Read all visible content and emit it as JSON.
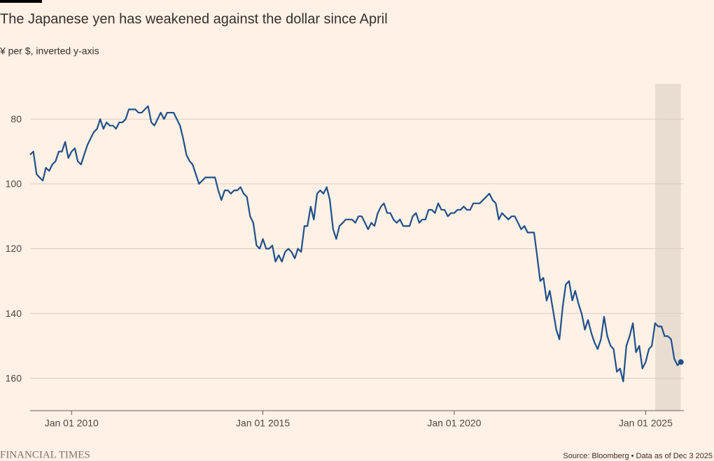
{
  "chart_data": {
    "type": "line",
    "title": "The Japanese yen has weakened against the dollar since April",
    "subtitle": "¥ per $, inverted y-axis",
    "source": "Source: Bloomberg • Data as of Dec 3 2025",
    "brand": "FINANCIAL TIMES",
    "color": "#1f4f8b",
    "highlight": [
      "2025-04-01",
      "2025-12-03"
    ],
    "highlight_color": "#e9ddd1",
    "inverted": true,
    "grid": true,
    "xlim": [
      "2008-12-01",
      "2026-01-01"
    ],
    "ylim": [
      70,
      170
    ],
    "yticks": [
      80,
      100,
      120,
      140,
      160
    ],
    "xticks": [
      {
        "value": "2010-01-01",
        "label": "Jan 01 2010"
      },
      {
        "value": "2015-01-01",
        "label": "Jan 01 2015"
      },
      {
        "value": "2020-01-01",
        "label": "Jan 01 2020"
      },
      {
        "value": "2025-01-01",
        "label": "Jan 01 2025"
      }
    ],
    "x": [
      "2008-12-01",
      "2009-01-01",
      "2009-02-01",
      "2009-03-01",
      "2009-04-01",
      "2009-05-01",
      "2009-06-01",
      "2009-07-01",
      "2009-08-01",
      "2009-09-01",
      "2009-10-01",
      "2009-11-01",
      "2009-12-01",
      "2010-01-01",
      "2010-02-01",
      "2010-03-01",
      "2010-04-01",
      "2010-05-01",
      "2010-06-01",
      "2010-07-01",
      "2010-08-01",
      "2010-09-01",
      "2010-10-01",
      "2010-11-01",
      "2010-12-01",
      "2011-01-01",
      "2011-02-01",
      "2011-03-01",
      "2011-04-01",
      "2011-05-01",
      "2011-06-01",
      "2011-07-01",
      "2011-08-01",
      "2011-09-01",
      "2011-10-01",
      "2011-11-01",
      "2011-12-01",
      "2012-01-01",
      "2012-02-01",
      "2012-03-01",
      "2012-04-01",
      "2012-05-01",
      "2012-06-01",
      "2012-07-01",
      "2012-08-01",
      "2012-09-01",
      "2012-10-01",
      "2012-11-01",
      "2012-12-01",
      "2013-01-01",
      "2013-02-01",
      "2013-03-01",
      "2013-04-01",
      "2013-05-01",
      "2013-06-01",
      "2013-07-01",
      "2013-08-01",
      "2013-09-01",
      "2013-10-01",
      "2013-11-01",
      "2013-12-01",
      "2014-01-01",
      "2014-02-01",
      "2014-03-01",
      "2014-04-01",
      "2014-05-01",
      "2014-06-01",
      "2014-07-01",
      "2014-08-01",
      "2014-09-01",
      "2014-10-01",
      "2014-11-01",
      "2014-12-01",
      "2015-01-01",
      "2015-02-01",
      "2015-03-01",
      "2015-04-01",
      "2015-05-01",
      "2015-06-01",
      "2015-07-01",
      "2015-08-01",
      "2015-09-01",
      "2015-10-01",
      "2015-11-01",
      "2015-12-01",
      "2016-01-01",
      "2016-02-01",
      "2016-03-01",
      "2016-04-01",
      "2016-05-01",
      "2016-06-01",
      "2016-07-01",
      "2016-08-01",
      "2016-09-01",
      "2016-10-01",
      "2016-11-01",
      "2016-12-01",
      "2017-01-01",
      "2017-02-01",
      "2017-03-01",
      "2017-04-01",
      "2017-05-01",
      "2017-06-01",
      "2017-07-01",
      "2017-08-01",
      "2017-09-01",
      "2017-10-01",
      "2017-11-01",
      "2017-12-01",
      "2018-01-01",
      "2018-02-01",
      "2018-03-01",
      "2018-04-01",
      "2018-05-01",
      "2018-06-01",
      "2018-07-01",
      "2018-08-01",
      "2018-09-01",
      "2018-10-01",
      "2018-11-01",
      "2018-12-01",
      "2019-01-01",
      "2019-02-01",
      "2019-03-01",
      "2019-04-01",
      "2019-05-01",
      "2019-06-01",
      "2019-07-01",
      "2019-08-01",
      "2019-09-01",
      "2019-10-01",
      "2019-11-01",
      "2019-12-01",
      "2020-01-01",
      "2020-02-01",
      "2020-03-01",
      "2020-04-01",
      "2020-05-01",
      "2020-06-01",
      "2020-07-01",
      "2020-08-01",
      "2020-09-01",
      "2020-10-01",
      "2020-11-01",
      "2020-12-01",
      "2021-01-01",
      "2021-02-01",
      "2021-03-01",
      "2021-04-01",
      "2021-05-01",
      "2021-06-01",
      "2021-07-01",
      "2021-08-01",
      "2021-09-01",
      "2021-10-01",
      "2021-11-01",
      "2021-12-01",
      "2022-01-01",
      "2022-02-01",
      "2022-03-01",
      "2022-04-01",
      "2022-05-01",
      "2022-06-01",
      "2022-07-01",
      "2022-08-01",
      "2022-09-01",
      "2022-10-01",
      "2022-11-01",
      "2022-12-01",
      "2023-01-01",
      "2023-02-01",
      "2023-03-01",
      "2023-04-01",
      "2023-05-01",
      "2023-06-01",
      "2023-07-01",
      "2023-08-01",
      "2023-09-01",
      "2023-10-01",
      "2023-11-01",
      "2023-12-01",
      "2024-01-01",
      "2024-02-01",
      "2024-03-01",
      "2024-04-01",
      "2024-05-01",
      "2024-06-01",
      "2024-07-01",
      "2024-08-01",
      "2024-09-01",
      "2024-10-01",
      "2024-11-01",
      "2024-12-01",
      "2025-01-01",
      "2025-02-01",
      "2025-03-01",
      "2025-04-01",
      "2025-05-01",
      "2025-06-01",
      "2025-07-01",
      "2025-08-01",
      "2025-09-01",
      "2025-10-01",
      "2025-11-01",
      "2025-12-03"
    ],
    "values": [
      91,
      90,
      97,
      98,
      99,
      95,
      96,
      94,
      93,
      90,
      90,
      87,
      92,
      90,
      89,
      93,
      94,
      91,
      88,
      86,
      84,
      83,
      80,
      83,
      81,
      82,
      82,
      83,
      81,
      81,
      80,
      77,
      77,
      77,
      78,
      78,
      77,
      76,
      81,
      82,
      80,
      78,
      80,
      78,
      78,
      78,
      80,
      82,
      86,
      91,
      93,
      94,
      97,
      100,
      99,
      98,
      98,
      98,
      98,
      102,
      105,
      102,
      102,
      103,
      102,
      102,
      101,
      103,
      104,
      110,
      112,
      119,
      120,
      117,
      120,
      120,
      119,
      124,
      122,
      124,
      121,
      120,
      121,
      123,
      120,
      121,
      113,
      113,
      107,
      111,
      103,
      102,
      103,
      101,
      105,
      114,
      117,
      113,
      112,
      111,
      111,
      111,
      112,
      110,
      110,
      112,
      114,
      112,
      113,
      109,
      107,
      106,
      109,
      109,
      111,
      112,
      111,
      113,
      113,
      113,
      110,
      109,
      112,
      111,
      111,
      108,
      108,
      109,
      106,
      108,
      108,
      110,
      109,
      109,
      108,
      108,
      107,
      108,
      108,
      106,
      106,
      106,
      105,
      104,
      103,
      105,
      106,
      111,
      109,
      110,
      111,
      110,
      110,
      112,
      114,
      113,
      115,
      115,
      115,
      122,
      130,
      129,
      136,
      133,
      139,
      145,
      148,
      138,
      131,
      130,
      136,
      133,
      137,
      140,
      145,
      142,
      146,
      149,
      151,
      148,
      141,
      147,
      150,
      151,
      158,
      157,
      161,
      150,
      147,
      143,
      152,
      150,
      157,
      155,
      151,
      150,
      143,
      144,
      144,
      147,
      147,
      148,
      154,
      156,
      155
    ]
  }
}
